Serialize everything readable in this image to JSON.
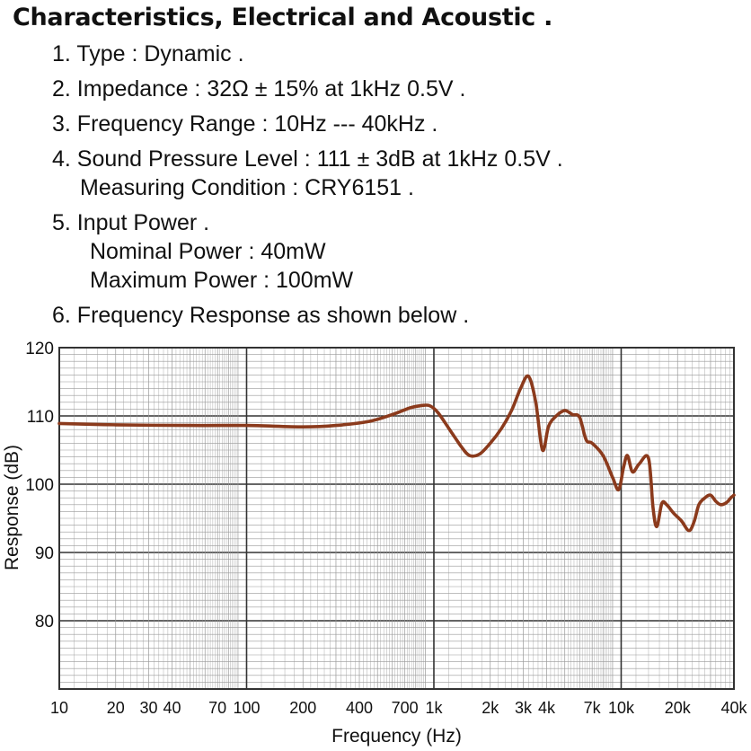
{
  "heading": "Characteristics, Electrical and Acoustic .",
  "specs": {
    "type": "1. Type : Dynamic .",
    "impedance": "2. Impedance : 32Ω ± 15% at 1kHz 0.5V .",
    "frequency_range": "3. Frequency Range : 10Hz --- 40kHz .",
    "spl": "4. Sound Pressure Level : 111 ± 3dB at 1kHz 0.5V .",
    "measuring_condition": "Measuring Condition : CRY6151 .",
    "input_power": "5. Input Power .",
    "nominal_power": "Nominal Power : 40mW",
    "maximum_power": "Maximum Power : 100mW",
    "frequency_response": "6. Frequency Response as shown below ."
  },
  "colors": {
    "curve": "#8b3a1c",
    "grid_major": "#333333",
    "grid_minor": "#999999"
  },
  "chart_data": {
    "type": "line",
    "xlabel": "Frequency (Hz)",
    "ylabel": "Response (dB)",
    "xscale": "log",
    "xlim": [
      10,
      40000
    ],
    "ylim": [
      70,
      120
    ],
    "y_ticks": [
      120,
      110,
      100,
      90,
      80
    ],
    "x_ticks": [
      {
        "value": 10,
        "label": "10"
      },
      {
        "value": 20,
        "label": "20"
      },
      {
        "value": 30,
        "label": "30"
      },
      {
        "value": 40,
        "label": "40"
      },
      {
        "value": 70,
        "label": "70"
      },
      {
        "value": 100,
        "label": "100"
      },
      {
        "value": 200,
        "label": "200"
      },
      {
        "value": 400,
        "label": "400"
      },
      {
        "value": 700,
        "label": "700"
      },
      {
        "value": 1000,
        "label": "1k"
      },
      {
        "value": 2000,
        "label": "2k"
      },
      {
        "value": 3000,
        "label": "3k"
      },
      {
        "value": 4000,
        "label": "4k"
      },
      {
        "value": 7000,
        "label": "7k"
      },
      {
        "value": 10000,
        "label": "10k"
      },
      {
        "value": 20000,
        "label": "20k"
      },
      {
        "value": 40000,
        "label": "40k"
      }
    ],
    "grid": true,
    "series": [
      {
        "x": [
          10,
          20,
          50,
          100,
          200,
          300,
          450,
          600,
          750,
          850,
          950,
          1050,
          1200,
          1400,
          1550,
          1750,
          2000,
          2300,
          2600,
          2900,
          3200,
          3500,
          3800,
          4100,
          4500,
          5000,
          5500,
          6000,
          6500,
          7000,
          8000,
          9000,
          9700,
          10300,
          10800,
          11500,
          12500,
          14000,
          14800,
          15500,
          16500,
          17500,
          19000,
          21000,
          23000,
          24500,
          26000,
          28000,
          30000,
          32000,
          34000,
          36500,
          38500,
          40000
        ],
        "y": [
          108.9,
          108.7,
          108.6,
          108.6,
          108.4,
          108.6,
          109.2,
          110.2,
          111.2,
          111.5,
          111.5,
          110.5,
          108.2,
          105.5,
          104.2,
          104.4,
          106.0,
          108.2,
          110.8,
          114.0,
          115.8,
          112.0,
          105.0,
          108.5,
          110.0,
          110.8,
          110.2,
          109.8,
          106.5,
          106.0,
          104.2,
          101.0,
          99.2,
          102.5,
          104.2,
          101.8,
          103.0,
          103.8,
          96.5,
          93.8,
          97.2,
          97.0,
          95.8,
          94.6,
          93.2,
          94.5,
          97.0,
          98.0,
          98.4,
          97.5,
          97.0,
          97.3,
          98.0,
          98.4
        ]
      }
    ]
  }
}
